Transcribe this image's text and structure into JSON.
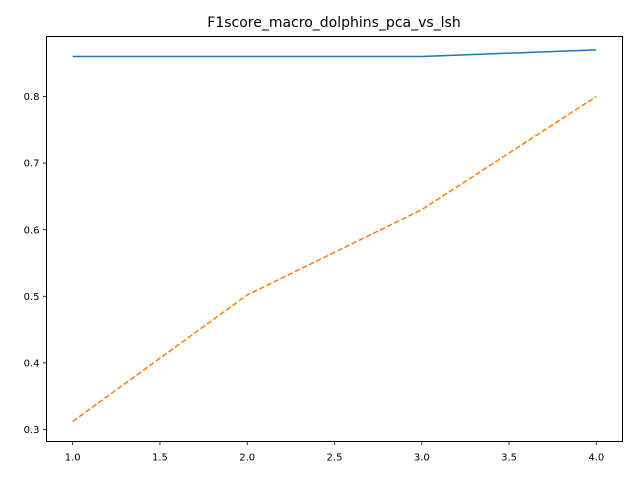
{
  "chart_data": {
    "type": "line",
    "title": "F1score_macro_dolphins_pca_vs_lsh",
    "xlabel": "",
    "ylabel": "",
    "x": [
      1.0,
      2.0,
      3.0,
      4.0
    ],
    "xlim": [
      0.85,
      4.15
    ],
    "ylim": [
      0.282,
      0.89
    ],
    "x_ticks": [
      1.0,
      1.5,
      2.0,
      2.5,
      3.0,
      3.5,
      4.0
    ],
    "x_tick_labels": [
      "1.0",
      "1.5",
      "2.0",
      "2.5",
      "3.0",
      "3.5",
      "4.0"
    ],
    "y_ticks": [
      0.3,
      0.4,
      0.5,
      0.6,
      0.7,
      0.8
    ],
    "y_tick_labels": [
      "0.3",
      "0.4",
      "0.5",
      "0.6",
      "0.7",
      "0.8"
    ],
    "grid": false,
    "legend": "none",
    "series": [
      {
        "values": [
          0.86,
          0.86,
          0.86,
          0.87
        ],
        "color": "#1f77b4",
        "line_style": "solid"
      },
      {
        "values": [
          0.312,
          0.502,
          0.63,
          0.8
        ],
        "color": "#ff7f0e",
        "line_style": "dashed"
      }
    ]
  }
}
